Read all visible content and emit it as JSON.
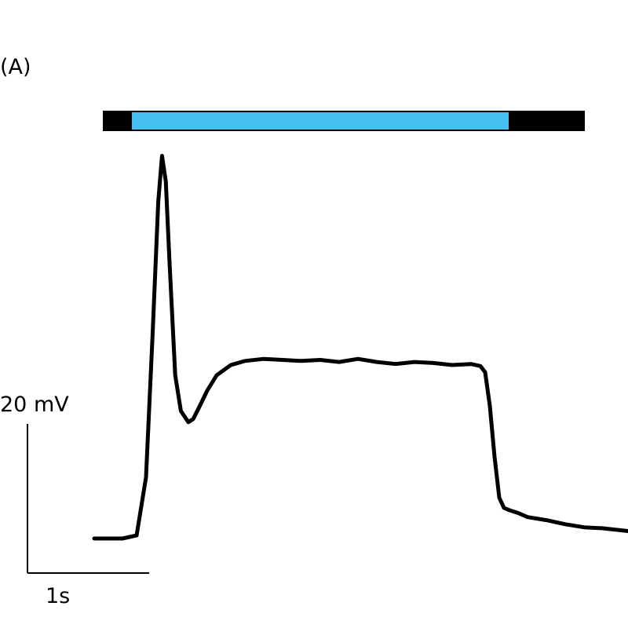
{
  "panel_label": "(A)",
  "colors": {
    "light_on": "#43bff0",
    "light_off": "#000000",
    "trace": "#000000"
  },
  "chart_data": {
    "type": "line",
    "title": "",
    "xlabel": "",
    "ylabel": "",
    "x_units": "s",
    "y_units": "mV",
    "x_range": [
      0,
      6.7
    ],
    "y_range": [
      0,
      40
    ],
    "grid": false,
    "legend": "none",
    "stimulus_bar": {
      "segments": [
        {
          "state": "off",
          "start": 0.1,
          "end": 0.4
        },
        {
          "state": "on",
          "start": 0.4,
          "end": 4.4
        },
        {
          "state": "off",
          "start": 4.4,
          "end": 5.2
        }
      ]
    },
    "scale_bar": {
      "y_value": 20,
      "y_label": "20 mV",
      "x_value": 1,
      "x_label": "1s"
    },
    "series": [
      {
        "x": [
          0,
          0.3,
          0.45,
          0.55,
          0.62,
          0.68,
          0.72,
          0.76,
          0.8,
          0.86,
          0.92,
          1.0,
          1.05,
          1.1,
          1.2,
          1.3,
          1.45,
          1.6,
          1.8,
          2.0,
          2.2,
          2.4,
          2.6,
          2.8,
          3.0,
          3.2,
          3.4,
          3.6,
          3.8,
          4.0,
          4.1,
          4.15,
          4.2,
          4.25,
          4.3,
          4.35,
          4.4,
          4.5,
          4.6,
          4.8,
          5.0,
          5.2,
          5.4,
          5.6,
          5.8
        ],
        "y": [
          0,
          0,
          0.3,
          6,
          20,
          33,
          37.5,
          35,
          27,
          16,
          12.5,
          11.4,
          11.7,
          12.6,
          14.5,
          16,
          17,
          17.4,
          17.6,
          17.5,
          17.4,
          17.5,
          17.3,
          17.6,
          17.3,
          17.1,
          17.3,
          17.2,
          17.0,
          17.1,
          16.9,
          16.3,
          13,
          8,
          4,
          3,
          2.8,
          2.5,
          2.1,
          1.8,
          1.4,
          1.1,
          1.0,
          0.8,
          0.6
        ]
      }
    ]
  }
}
